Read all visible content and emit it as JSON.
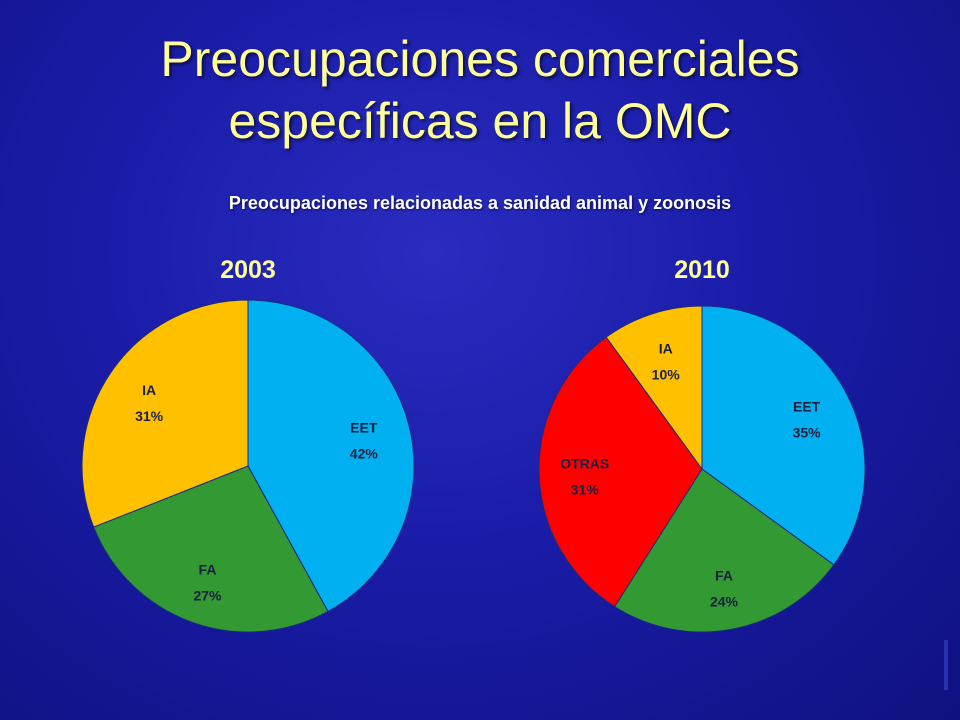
{
  "slide": {
    "title_line1": "Preocupaciones comerciales",
    "title_line2": "específicas en la OMC",
    "subtitle": "Preocupaciones relacionadas a sanidad animal y zoonosis"
  },
  "colors": {
    "EET": "#00b0f0",
    "FA": "#339933",
    "IA": "#ffc000",
    "OTRAS": "#ff0000"
  },
  "chart_data": [
    {
      "type": "pie",
      "title": "2003",
      "slices": [
        {
          "label": "EET",
          "value": 42,
          "display": "42%"
        },
        {
          "label": "FA",
          "value": 27,
          "display": "27%"
        },
        {
          "label": "IA",
          "value": 31,
          "display": "31%"
        }
      ]
    },
    {
      "type": "pie",
      "title": "2010",
      "slices": [
        {
          "label": "EET",
          "value": 35,
          "display": "35%"
        },
        {
          "label": "FA",
          "value": 24,
          "display": "24%"
        },
        {
          "label": "OTRAS",
          "value": 31,
          "display": "31%"
        },
        {
          "label": "IA",
          "value": 10,
          "display": "10%"
        }
      ]
    }
  ]
}
